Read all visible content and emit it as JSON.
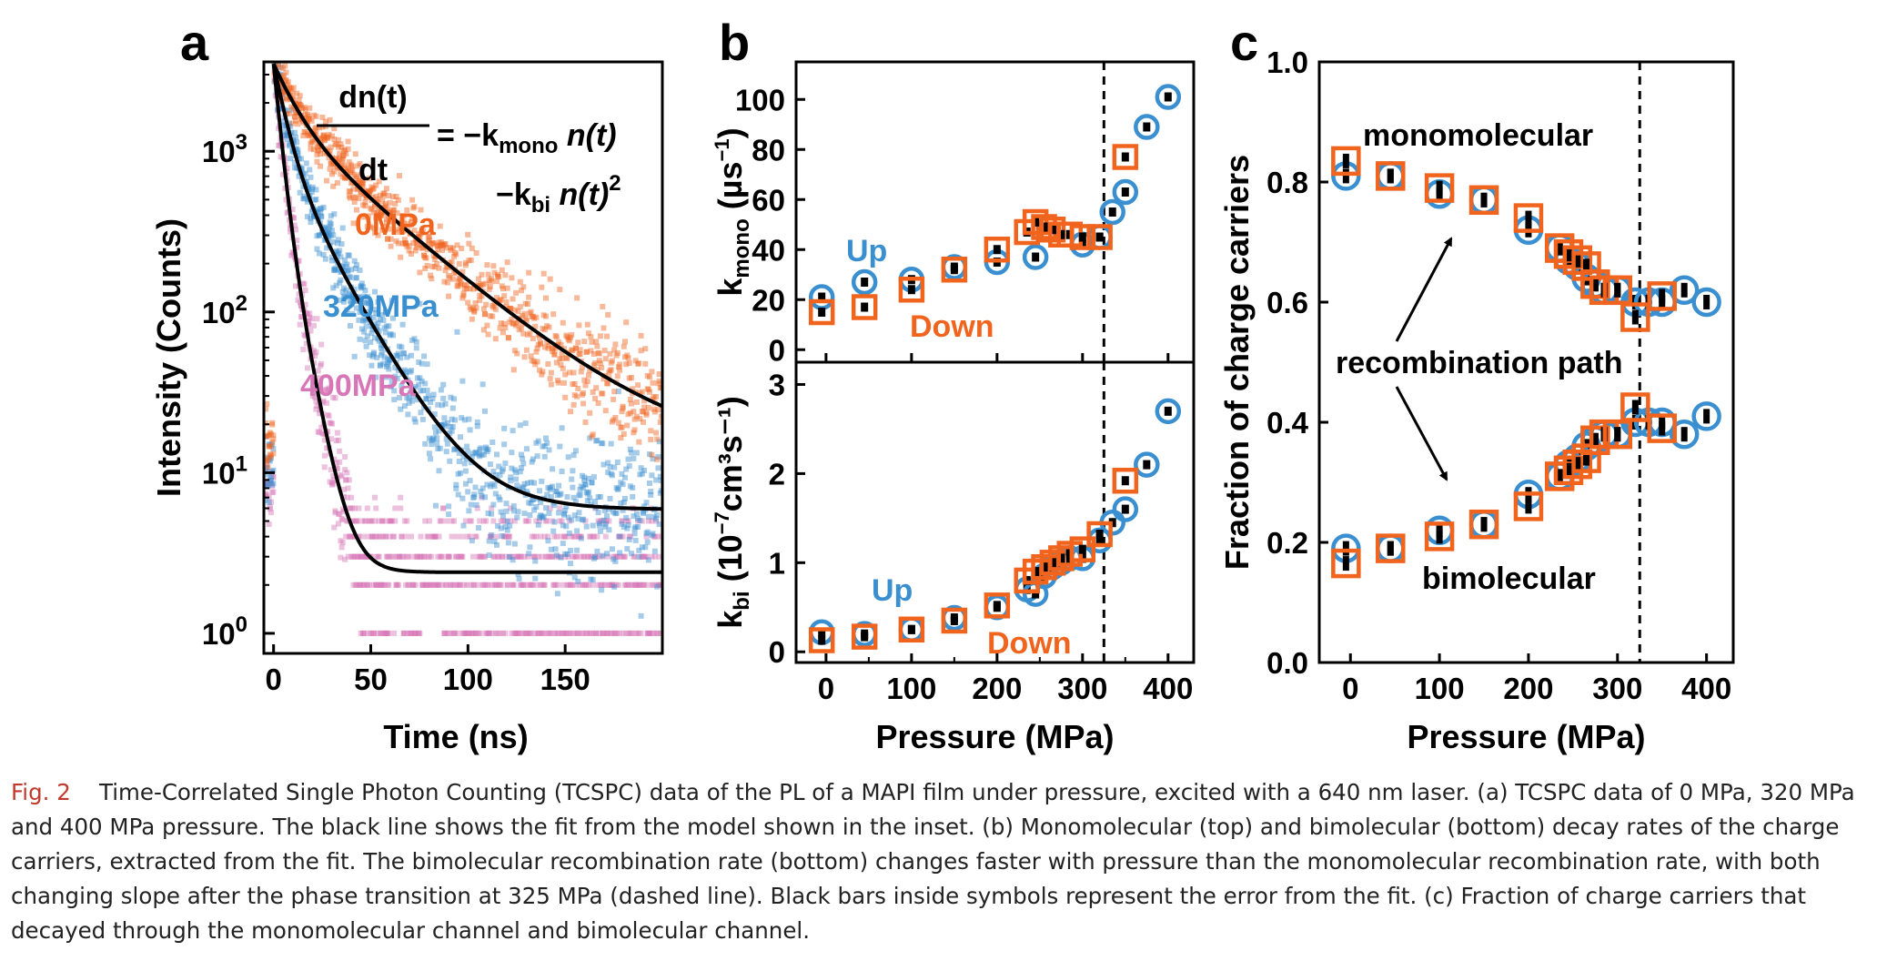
{
  "colors": {
    "orange": "#f0641e",
    "blue": "#3a8fd0",
    "pink": "#d777b8",
    "black": "#000000"
  },
  "panels": {
    "a": {
      "letter": "a"
    },
    "b": {
      "letter": "b"
    },
    "c": {
      "letter": "c"
    }
  },
  "equation": {
    "numerator": "dn(t)",
    "denominator": "dt",
    "rhs1": "= −k",
    "rhs1_sub": "mono",
    "rhs1_tail": " n(t)",
    "rhs2": "−k",
    "rhs2_sub": "bi",
    "rhs2_tail": " n(t)",
    "rhs2_sup": "2"
  },
  "chart_data": [
    {
      "panel": "a",
      "type": "scatter",
      "xlabel": "Time (ns)",
      "ylabel": "Intensity (Counts)",
      "ylog": true,
      "xlim": [
        -5,
        200
      ],
      "ylim": [
        0.75,
        3600
      ],
      "xticks": [
        0,
        50,
        100,
        150
      ],
      "yticks": [
        {
          "value": 1,
          "base": "10",
          "exp": "0"
        },
        {
          "value": 10,
          "base": "10",
          "exp": "1"
        },
        {
          "value": 100,
          "base": "10",
          "exp": "2"
        },
        {
          "value": 1000,
          "base": "10",
          "exp": "3"
        }
      ],
      "series": [
        {
          "name": "0MPa",
          "color": "orange",
          "peak": 3500,
          "baseline": 12.5,
          "tau_fast": 11,
          "w_fast": 0.55,
          "tau_slow": 42,
          "pre_level": 16
        },
        {
          "name": "320MPa",
          "color": "blue",
          "peak": 3500,
          "baseline": 5.9,
          "tau_fast": 6,
          "w_fast": 0.72,
          "tau_slow": 20,
          "pre_level": 10
        },
        {
          "name": "400MPa",
          "color": "pink",
          "peak": 3500,
          "baseline": 2.4,
          "tau_fast": 3.2,
          "w_fast": 0.8,
          "tau_slow": 7,
          "pre_level": 8
        }
      ],
      "fit_label": "fit"
    },
    {
      "panel": "b-top",
      "type": "scatter",
      "xlabel": "",
      "ylabel_main": "k",
      "ylabel_sub": "mono",
      "ylabel_units_pre": " (µs",
      "ylabel_units_sup": "−1",
      "ylabel_units_post": ")",
      "xlim": [
        -35,
        430
      ],
      "ylim": [
        -5,
        115
      ],
      "yticks": [
        0,
        20,
        40,
        60,
        80,
        100
      ],
      "vline": 325,
      "annotations": {
        "up": "Up",
        "down": "Down"
      },
      "series": [
        {
          "name": "Up",
          "color": "blue",
          "marker": "circle",
          "x": [
            -5,
            45,
            100,
            150,
            200,
            245,
            300,
            320,
            335,
            350,
            375,
            400
          ],
          "y": [
            21,
            27,
            28,
            33,
            35,
            37,
            42,
            45,
            55,
            63,
            89,
            101
          ]
        },
        {
          "name": "Down",
          "color": "orange",
          "marker": "square",
          "x": [
            -5,
            45,
            100,
            150,
            200,
            235,
            245,
            255,
            265,
            275,
            285,
            300,
            320,
            350
          ],
          "y": [
            15,
            17,
            24,
            32,
            40,
            47,
            51,
            49,
            48,
            46,
            46,
            45,
            45,
            77
          ]
        }
      ]
    },
    {
      "panel": "b-bottom",
      "type": "scatter",
      "xlabel": "Pressure (MPa)",
      "ylabel_main": "k",
      "ylabel_sub": "bi",
      "ylabel_units_pre": " (10",
      "ylabel_units_sup": "−7",
      "ylabel_units_post": "cm³s⁻¹)",
      "xlim": [
        -35,
        430
      ],
      "ylim": [
        -0.12,
        3.25
      ],
      "yticks": [
        0,
        1,
        2,
        3
      ],
      "xticks": [
        0,
        100,
        200,
        300,
        400
      ],
      "vline": 325,
      "annotations": {
        "up": "Up",
        "down": "Down"
      },
      "series": [
        {
          "name": "Up",
          "color": "blue",
          "marker": "circle",
          "x": [
            -5,
            45,
            100,
            150,
            200,
            235,
            245,
            255,
            265,
            275,
            285,
            300,
            320,
            335,
            350,
            375,
            400
          ],
          "y": [
            0.22,
            0.2,
            0.25,
            0.38,
            0.5,
            0.7,
            0.65,
            0.85,
            0.95,
            1.0,
            1.05,
            1.05,
            1.25,
            1.45,
            1.6,
            2.1,
            2.7
          ]
        },
        {
          "name": "Down",
          "color": "orange",
          "marker": "square",
          "x": [
            -5,
            45,
            100,
            150,
            200,
            235,
            245,
            255,
            265,
            275,
            285,
            300,
            320,
            350
          ],
          "y": [
            0.13,
            0.17,
            0.25,
            0.35,
            0.52,
            0.8,
            0.9,
            0.95,
            1.0,
            1.05,
            1.1,
            1.15,
            1.32,
            1.92
          ]
        }
      ]
    },
    {
      "panel": "c",
      "type": "scatter",
      "xlabel": "Pressure (MPa)",
      "ylabel": "Fraction of charge carriers",
      "xlim": [
        -35,
        430
      ],
      "ylim": [
        0.0,
        1.0
      ],
      "yticks": [
        "0.0",
        "0.2",
        "0.4",
        "0.6",
        "0.8",
        "1.0"
      ],
      "xticks": [
        0,
        100,
        200,
        300,
        400
      ],
      "vline": 325,
      "annotations": {
        "mono": "monomolecular",
        "path": "recombination path",
        "bi": "bimolecular"
      },
      "series": [
        {
          "name": "mono-up",
          "color": "blue",
          "marker": "circle",
          "x": [
            -5,
            45,
            100,
            150,
            200,
            235,
            245,
            255,
            265,
            275,
            285,
            300,
            320,
            335,
            350,
            375,
            400
          ],
          "y": [
            0.81,
            0.81,
            0.78,
            0.77,
            0.72,
            0.69,
            0.67,
            0.66,
            0.64,
            0.63,
            0.62,
            0.62,
            0.6,
            0.6,
            0.6,
            0.62,
            0.6
          ]
        },
        {
          "name": "mono-down",
          "color": "orange",
          "marker": "square",
          "x": [
            -5,
            45,
            100,
            150,
            200,
            235,
            245,
            255,
            265,
            275,
            285,
            300,
            320,
            350
          ],
          "y": [
            0.835,
            0.81,
            0.79,
            0.77,
            0.74,
            0.69,
            0.68,
            0.67,
            0.66,
            0.63,
            0.62,
            0.62,
            0.575,
            0.61
          ]
        },
        {
          "name": "bi-up",
          "color": "blue",
          "marker": "circle",
          "x": [
            -5,
            45,
            100,
            150,
            200,
            235,
            245,
            255,
            265,
            275,
            285,
            300,
            320,
            335,
            350,
            375,
            400
          ],
          "y": [
            0.19,
            0.19,
            0.22,
            0.23,
            0.28,
            0.31,
            0.33,
            0.34,
            0.36,
            0.37,
            0.38,
            0.38,
            0.4,
            0.4,
            0.4,
            0.38,
            0.41
          ]
        },
        {
          "name": "bi-down",
          "color": "orange",
          "marker": "square",
          "x": [
            -5,
            45,
            100,
            150,
            200,
            235,
            245,
            255,
            265,
            275,
            285,
            300,
            320,
            350
          ],
          "y": [
            0.165,
            0.19,
            0.21,
            0.23,
            0.26,
            0.31,
            0.32,
            0.33,
            0.34,
            0.37,
            0.38,
            0.38,
            0.425,
            0.39
          ]
        }
      ]
    }
  ],
  "caption": {
    "label": "Fig. 2",
    "text": "Time-Correlated Single Photon Counting (TCSPC) data of the PL of a MAPI film under pressure, excited with a 640 nm laser. (a) TCSPC data of 0 MPa, 320 MPa and 400 MPa pressure. The black line shows the fit from the model shown in the inset. (b) Monomolecular (top) and bimolecular (bottom) decay rates of the charge carriers, extracted from the fit. The bimolecular recombination rate (bottom) changes faster with pressure than the monomolecular recombination rate, with both changing slope after the phase transition at 325 MPa (dashed line). Black bars inside symbols represent the error from the fit. (c) Fraction of charge carriers that decayed through the monomolecular channel and bimolecular channel."
  }
}
